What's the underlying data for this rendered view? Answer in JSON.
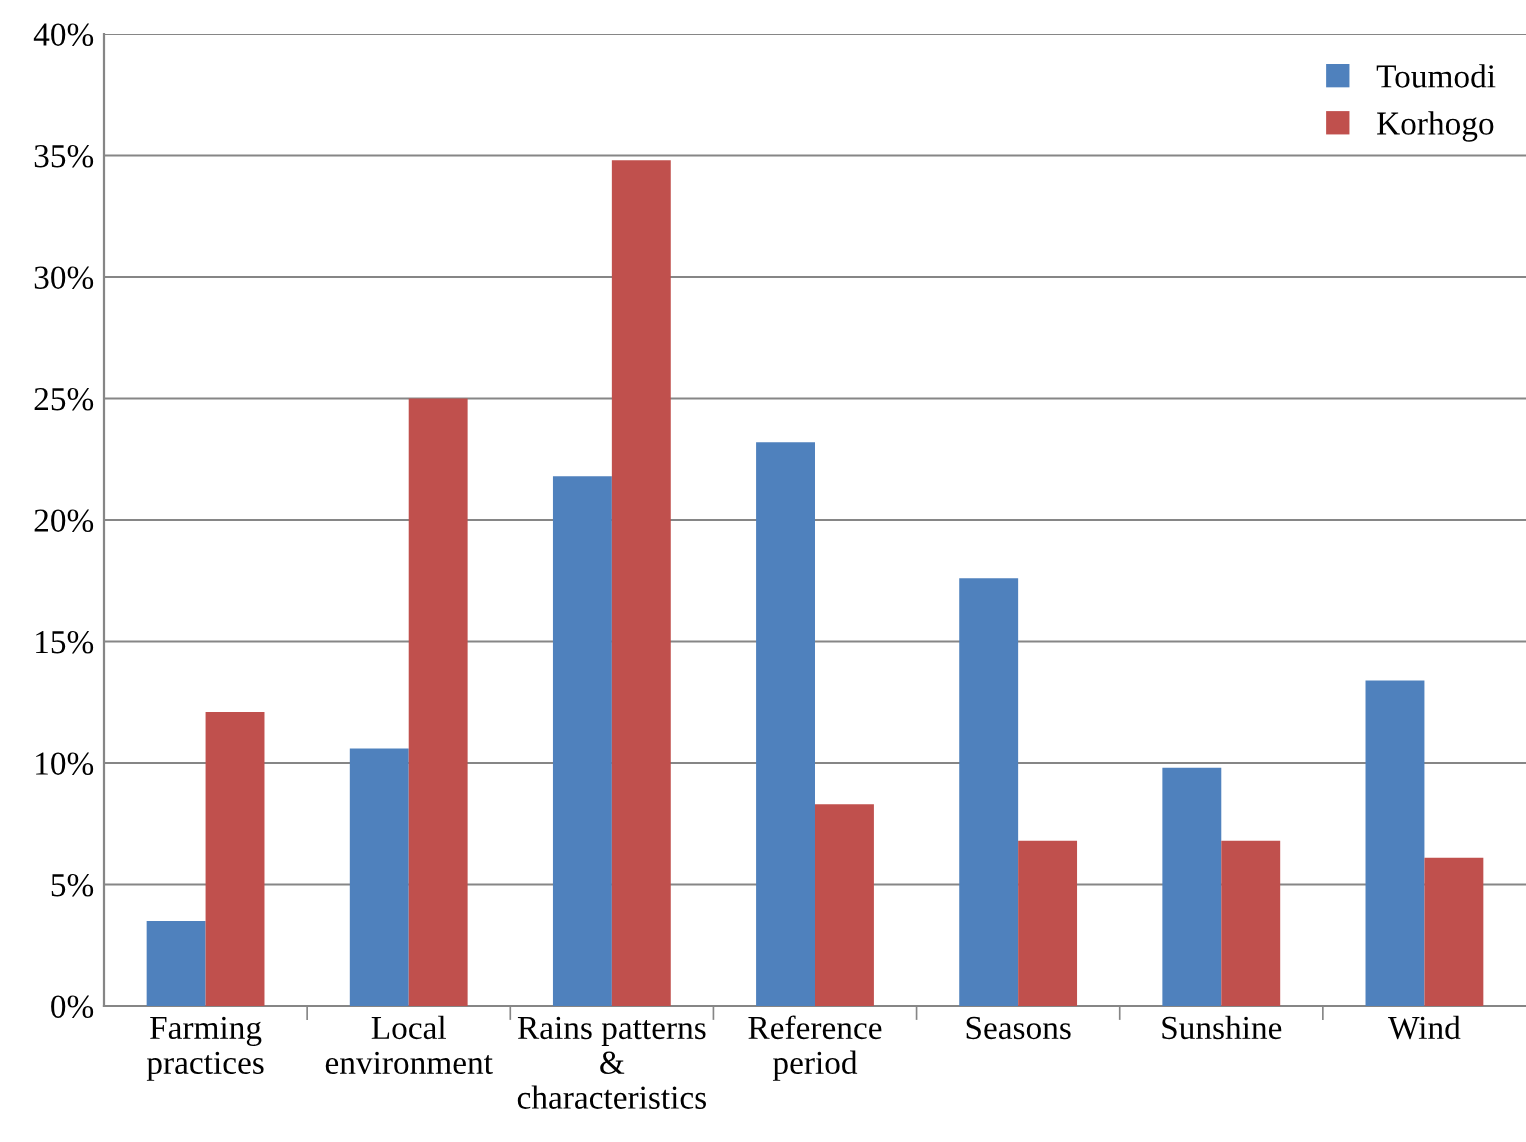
{
  "chart_data": {
    "type": "bar",
    "categories": [
      "Farming\npractices",
      "Local\nenvironment",
      "Rains patterns\n&\ncharacteristics",
      "Reference\nperiod",
      "Seasons",
      "Sunshine",
      "Wind"
    ],
    "series": [
      {
        "name": "Toumodi",
        "color": "#4f81bd",
        "values": [
          3.5,
          10.6,
          21.8,
          23.2,
          17.6,
          9.8,
          13.4
        ]
      },
      {
        "name": "Korhogo",
        "color": "#c0504d",
        "values": [
          12.1,
          25.0,
          34.8,
          8.3,
          6.8,
          6.8,
          6.1
        ]
      }
    ],
    "ylim": [
      0,
      40
    ],
    "yticks": [
      {
        "value": 0,
        "label": "0%"
      },
      {
        "value": 5,
        "label": "5%"
      },
      {
        "value": 10,
        "label": "10%"
      },
      {
        "value": 15,
        "label": "15%"
      },
      {
        "value": 20,
        "label": "20%"
      },
      {
        "value": 25,
        "label": "25%"
      },
      {
        "value": 30,
        "label": "30%"
      },
      {
        "value": 35,
        "label": "35%"
      },
      {
        "value": 40,
        "label": "40%"
      }
    ],
    "grid": "y",
    "legend": "top right"
  }
}
